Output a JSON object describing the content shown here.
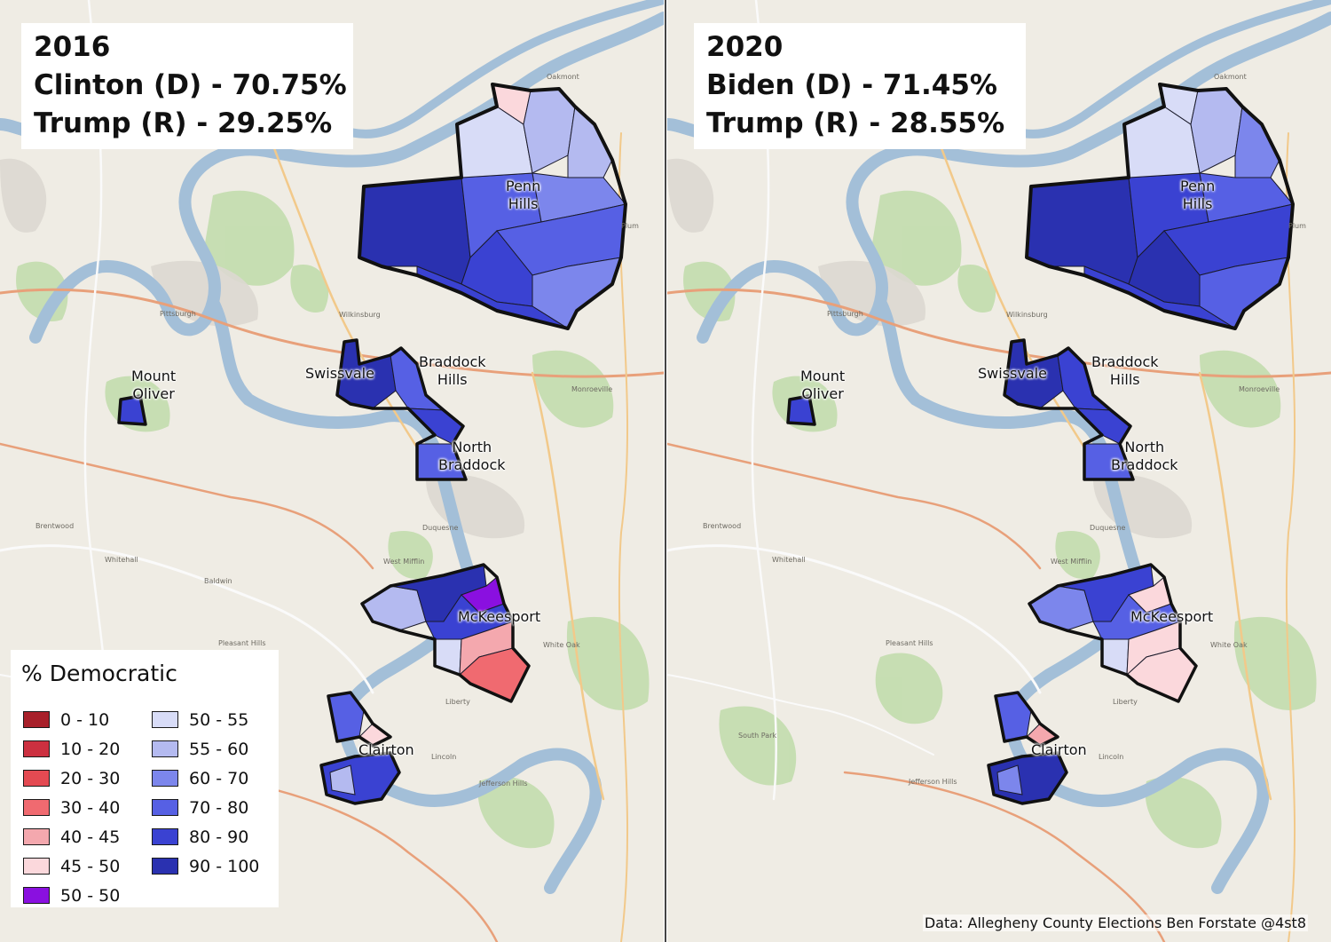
{
  "panels": [
    {
      "id": "left",
      "title": {
        "year": "2016",
        "dem_line": "Clinton (D) - 70.75%",
        "rep_line": "Trump (R) - 29.25%"
      },
      "labels": {
        "penn_hills": [
          "Penn",
          "Hills"
        ],
        "mount_oliver": [
          "Mount",
          "Oliver"
        ],
        "swissvale": "Swissvale",
        "braddock_hills": [
          "Braddock",
          "Hills"
        ],
        "north_braddock": [
          "North",
          "Braddock"
        ],
        "mckeesport": "McKeesport",
        "clairton": "Clairton"
      },
      "map_text": [
        "Pittsburgh",
        "Wilkinsburg",
        "Monroeville",
        "Duquesne",
        "West Mifflin",
        "Oakmont",
        "Plum",
        "Whitehall",
        "Brentwood",
        "Pleasant Hills",
        "Liberty",
        "White Oak",
        "Jefferson Hills",
        "Lincoln",
        "Baldwin"
      ]
    },
    {
      "id": "right",
      "title": {
        "year": "2020",
        "dem_line": "Biden (D) - 71.45%",
        "rep_line": "Trump (R) - 28.55%"
      },
      "labels": {
        "penn_hills": [
          "Penn",
          "Hills"
        ],
        "mount_oliver": [
          "Mount",
          "Oliver"
        ],
        "swissvale": "Swissvale",
        "braddock_hills": [
          "Braddock",
          "Hills"
        ],
        "north_braddock": [
          "North",
          "Braddock"
        ],
        "mckeesport": "McKeesport",
        "clairton": "Clairton"
      },
      "map_text": [
        "Pittsburgh",
        "Wilkinsburg",
        "Monroeville",
        "Duquesne",
        "West Mifflin",
        "Oakmont",
        "Plum",
        "Whitehall",
        "Brentwood",
        "Pleasant Hills",
        "Liberty",
        "White Oak",
        "Jefferson Hills",
        "Lincoln",
        "South Park"
      ]
    }
  ],
  "legend": {
    "title": "% Democratic",
    "items": [
      {
        "label": "0 - 10",
        "color": "#a8202a"
      },
      {
        "label": "50 - 55",
        "color": "#d8dcf7"
      },
      {
        "label": "10 - 20",
        "color": "#cc3040"
      },
      {
        "label": "55 - 60",
        "color": "#b4baf0"
      },
      {
        "label": "20 - 30",
        "color": "#e44a52"
      },
      {
        "label": "60 - 70",
        "color": "#7c86ec"
      },
      {
        "label": "30 - 40",
        "color": "#f06a70"
      },
      {
        "label": "70 - 80",
        "color": "#5660e4"
      },
      {
        "label": "40 - 45",
        "color": "#f4a8ae"
      },
      {
        "label": "80 - 90",
        "color": "#3a42d2"
      },
      {
        "label": "45 - 50",
        "color": "#fbd8dc"
      },
      {
        "label": "90 - 100",
        "color": "#2a31b0"
      },
      {
        "label": "50 - 50",
        "color": "#8a10e0"
      }
    ]
  },
  "source": "Data: Allegheny County Elections  Ben Forstate @4st8"
}
